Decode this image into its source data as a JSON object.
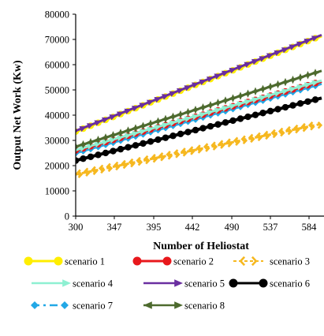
{
  "chart_data": {
    "type": "line",
    "xlabel": "Number of Heliostat",
    "ylabel": "Output Net Work (Kw)",
    "x_ticks": [
      "300",
      "347",
      "395",
      "442",
      "490",
      "537",
      "584"
    ],
    "y_ticks": [
      "0",
      "10000",
      "20000",
      "30000",
      "40000",
      "50000",
      "60000",
      "70000",
      "80000"
    ],
    "xlim": [
      300,
      584
    ],
    "ylim": [
      0,
      80000
    ],
    "grid": false,
    "legend_position": "bottom",
    "series": [
      {
        "name": "scenario 1",
        "color": "#ffee00",
        "x": [
          300,
          584
        ],
        "values": [
          33500,
          69500
        ],
        "marker": "circle"
      },
      {
        "name": "scenario 2",
        "color": "#e8181c",
        "x": [
          300,
          584
        ],
        "values": [
          26000,
          52000
        ],
        "marker": "circle"
      },
      {
        "name": "scenario 3",
        "color": "#f6b820",
        "x": [
          300,
          584
        ],
        "values": [
          16500,
          35500
        ],
        "marker": "chevron"
      },
      {
        "name": "scenario 4",
        "color": "#8ef0d2",
        "x": [
          300,
          584
        ],
        "values": [
          26200,
          52300
        ],
        "marker": "arrow"
      },
      {
        "name": "scenario 5",
        "color": "#6a2fa0",
        "x": [
          300,
          584
        ],
        "values": [
          33800,
          69800
        ],
        "marker": "arrow"
      },
      {
        "name": "scenario 6",
        "color": "#000000",
        "x": [
          300,
          584
        ],
        "values": [
          22000,
          45500
        ],
        "marker": "circle"
      },
      {
        "name": "scenario 7",
        "color": "#22a8e6",
        "x": [
          300,
          584
        ],
        "values": [
          25000,
          51000
        ],
        "marker": "diamond"
      },
      {
        "name": "scenario 8",
        "color": "#4d6a2e",
        "x": [
          300,
          584
        ],
        "values": [
          27500,
          56000
        ],
        "marker": "star"
      }
    ]
  }
}
